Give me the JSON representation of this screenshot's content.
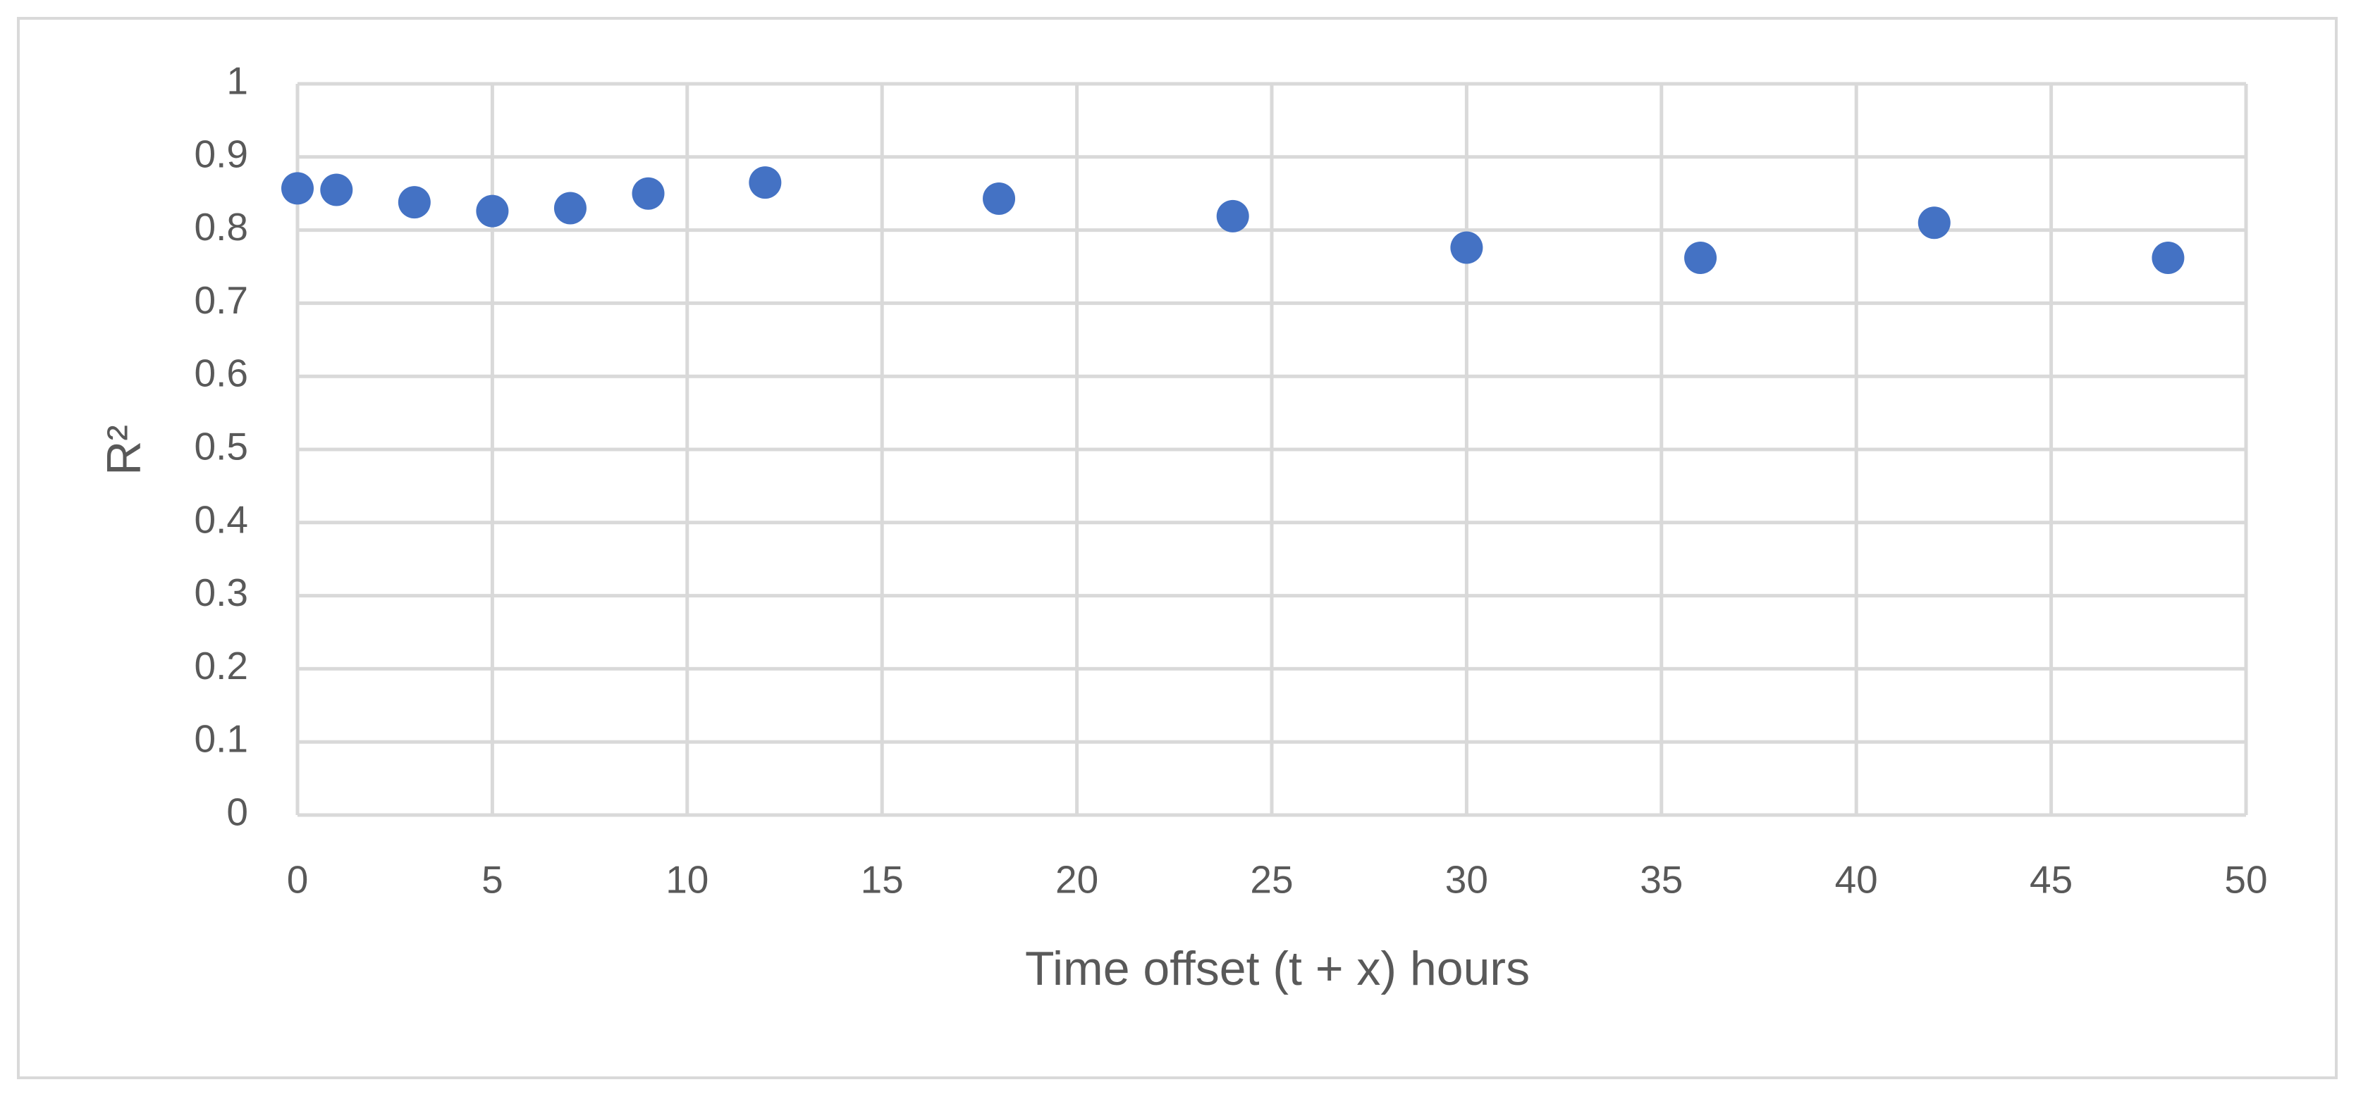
{
  "chart_data": {
    "type": "scatter",
    "x_label": "Time offset (t + x) hours",
    "y_label": "R²",
    "x": [
      0,
      1,
      3,
      5,
      7,
      9,
      12,
      18,
      24,
      30,
      36,
      42,
      48
    ],
    "values": [
      0.857,
      0.855,
      0.838,
      0.826,
      0.83,
      0.85,
      0.865,
      0.843,
      0.819,
      0.776,
      0.762,
      0.81,
      0.762
    ],
    "color": "#4472c4",
    "xlim": [
      0,
      50
    ],
    "xticks": [
      0,
      5,
      10,
      15,
      20,
      25,
      30,
      35,
      40,
      45,
      50
    ],
    "ylim": [
      0,
      1
    ],
    "yticks": [
      0,
      0.1,
      0.2,
      0.3,
      0.4,
      0.5,
      0.6,
      0.7,
      0.8,
      0.9,
      1
    ],
    "grid": true
  }
}
